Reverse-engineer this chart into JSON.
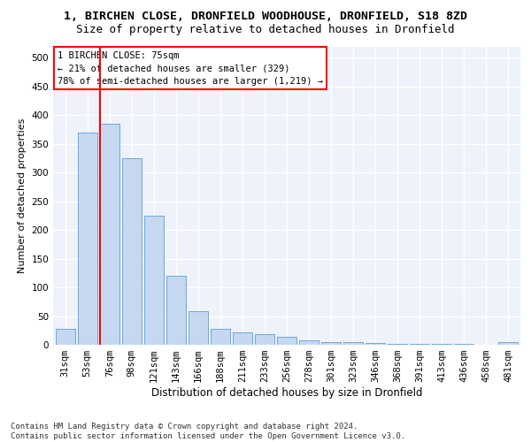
{
  "title": "1, BIRCHEN CLOSE, DRONFIELD WOODHOUSE, DRONFIELD, S18 8ZD",
  "subtitle": "Size of property relative to detached houses in Dronfield",
  "xlabel": "Distribution of detached houses by size in Dronfield",
  "ylabel": "Number of detached properties",
  "bar_color": "#c5d8f0",
  "bar_edge_color": "#5a9fd4",
  "categories": [
    "31sqm",
    "53sqm",
    "76sqm",
    "98sqm",
    "121sqm",
    "143sqm",
    "166sqm",
    "188sqm",
    "211sqm",
    "233sqm",
    "256sqm",
    "278sqm",
    "301sqm",
    "323sqm",
    "346sqm",
    "368sqm",
    "391sqm",
    "413sqm",
    "436sqm",
    "458sqm",
    "481sqm"
  ],
  "values": [
    28,
    370,
    385,
    325,
    225,
    120,
    58,
    27,
    22,
    18,
    14,
    7,
    5,
    4,
    3,
    2,
    1,
    1,
    1,
    0,
    5
  ],
  "ylim": [
    0,
    520
  ],
  "yticks": [
    0,
    50,
    100,
    150,
    200,
    250,
    300,
    350,
    400,
    450,
    500
  ],
  "property_bar_index": 2,
  "annotation_line1": "1 BIRCHEN CLOSE: 75sqm",
  "annotation_line2": "← 21% of detached houses are smaller (329)",
  "annotation_line3": "78% of semi-detached houses are larger (1,219) →",
  "annotation_box_color": "white",
  "annotation_box_edge_color": "red",
  "vline_color": "red",
  "footer_text": "Contains HM Land Registry data © Crown copyright and database right 2024.\nContains public sector information licensed under the Open Government Licence v3.0.",
  "background_color": "#eef2fa",
  "grid_color": "white",
  "title_fontsize": 9.5,
  "subtitle_fontsize": 9,
  "xlabel_fontsize": 8.5,
  "ylabel_fontsize": 8,
  "tick_fontsize": 7.5,
  "footer_fontsize": 6.5
}
